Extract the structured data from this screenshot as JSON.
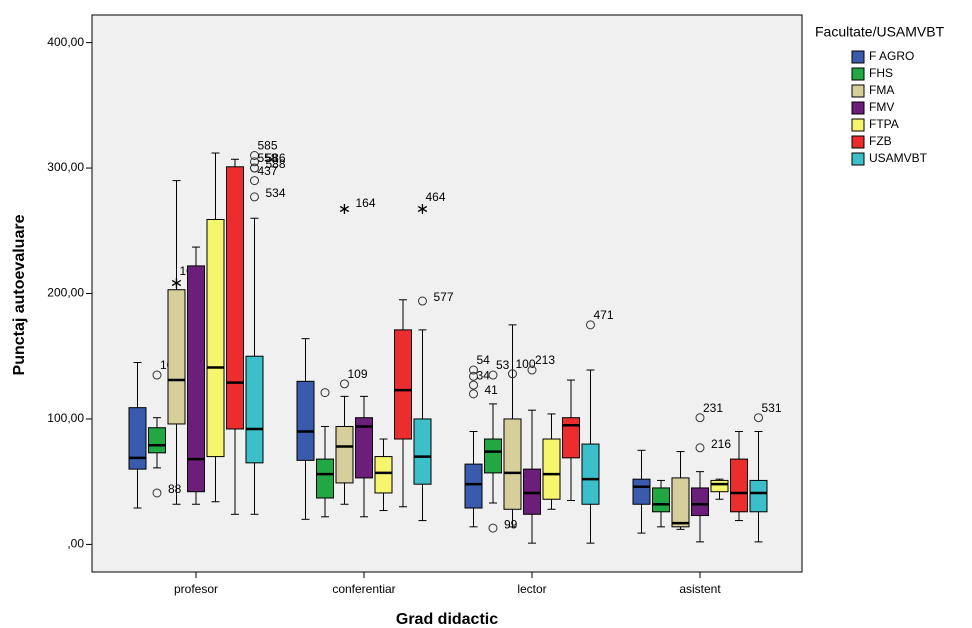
{
  "chart_data": {
    "type": "box",
    "x_label": "Grad didactic",
    "y_label": "Punctaj autoevaluare",
    "legend_title": "Facultate/USAMVBT",
    "categories": [
      "profesor",
      "conferentiar",
      "lector",
      "asistent"
    ],
    "ylim": [
      -22,
      422
    ],
    "yticks": [
      {
        "value": 0,
        "label": ",00"
      },
      {
        "value": 100,
        "label": "100,00"
      },
      {
        "value": 200,
        "label": "200,00"
      },
      {
        "value": 300,
        "label": "300,00"
      },
      {
        "value": 400,
        "label": "400,00"
      }
    ],
    "series": [
      {
        "name": "F AGRO",
        "color": "#3a5bad",
        "boxes": [
          {
            "whislo": 29,
            "q1": 60,
            "med": 69,
            "q3": 109,
            "whishi": 145,
            "outliers": []
          },
          {
            "whislo": 20,
            "q1": 67,
            "med": 90,
            "q3": 130,
            "whishi": 164,
            "outliers": []
          },
          {
            "whislo": 14,
            "q1": 29,
            "med": 48,
            "q3": 64,
            "whishi": 90,
            "outliers": [
              {
                "value": 139,
                "label": "54"
              },
              {
                "value": 134
              },
              {
                "value": 127,
                "label": "34"
              },
              {
                "value": 120,
                "label": "41"
              }
            ]
          },
          {
            "whislo": 9,
            "q1": 32,
            "med": 46,
            "q3": 52,
            "whishi": 75,
            "outliers": []
          }
        ]
      },
      {
        "name": "FHS",
        "color": "#22a843",
        "boxes": [
          {
            "whislo": 61,
            "q1": 73,
            "med": 79,
            "q3": 93,
            "whishi": 101,
            "outliers": [
              {
                "value": 135,
                "label": "105"
              },
              {
                "value": 41,
                "label": "88"
              }
            ]
          },
          {
            "whislo": 22,
            "q1": 37,
            "med": 56,
            "q3": 68,
            "whishi": 94,
            "outliers": [
              {
                "value": 121
              }
            ]
          },
          {
            "whislo": 33,
            "q1": 57,
            "med": 74,
            "q3": 84,
            "whishi": 112,
            "outliers": [
              {
                "value": 135,
                "label": "53"
              },
              {
                "value": 13,
                "label": "99"
              }
            ]
          },
          {
            "whislo": 14,
            "q1": 26,
            "med": 32,
            "q3": 45,
            "whishi": 51,
            "outliers": []
          }
        ]
      },
      {
        "name": "FMA",
        "color": "#d6cf9c",
        "boxes": [
          {
            "whislo": 32,
            "q1": 96,
            "med": 131,
            "q3": 203,
            "whishi": 290,
            "outliers": [
              {
                "value": 210,
                "label": "104",
                "marker": "star"
              }
            ]
          },
          {
            "whislo": 32,
            "q1": 49,
            "med": 78,
            "q3": 94,
            "whishi": 118,
            "outliers": [
              {
                "value": 128,
                "label": "109"
              },
              {
                "value": 269,
                "label": "164",
                "marker": "star"
              }
            ]
          },
          {
            "whislo": 14,
            "q1": 28,
            "med": 57,
            "q3": 100,
            "whishi": 175,
            "outliers": [
              {
                "value": 136,
                "label": "100"
              }
            ]
          },
          {
            "whislo": 12,
            "q1": 14,
            "med": 17,
            "q3": 53,
            "whishi": 74,
            "outliers": []
          }
        ]
      },
      {
        "name": "FMV",
        "color": "#6b1f7a",
        "boxes": [
          {
            "whislo": 32,
            "q1": 42,
            "med": 68,
            "q3": 222,
            "whishi": 237,
            "outliers": []
          },
          {
            "whislo": 22,
            "q1": 53,
            "med": 94,
            "q3": 101,
            "whishi": 118,
            "outliers": []
          },
          {
            "whislo": 1,
            "q1": 24,
            "med": 41,
            "q3": 60,
            "whishi": 107,
            "outliers": [
              {
                "value": 139,
                "label": "213"
              }
            ]
          },
          {
            "whislo": 2,
            "q1": 23,
            "med": 32,
            "q3": 45,
            "whishi": 58,
            "outliers": [
              {
                "value": 101,
                "label": "231"
              },
              {
                "value": 77,
                "label": "216"
              }
            ]
          }
        ]
      },
      {
        "name": "FTPA",
        "color": "#f6f56e",
        "boxes": [
          {
            "whislo": 34,
            "q1": 70,
            "med": 141,
            "q3": 259,
            "whishi": 312,
            "outliers": []
          },
          {
            "whislo": 27,
            "q1": 41,
            "med": 57,
            "q3": 70,
            "whishi": 84,
            "outliers": []
          },
          {
            "whislo": 28,
            "q1": 36,
            "med": 56,
            "q3": 84,
            "whishi": 104,
            "outliers": []
          },
          {
            "whislo": 36,
            "q1": 42,
            "med": 48,
            "q3": 51,
            "whishi": 52,
            "outliers": []
          }
        ]
      },
      {
        "name": "FZB",
        "color": "#ec2d2d",
        "boxes": [
          {
            "whislo": 24,
            "q1": 92,
            "med": 129,
            "q3": 301,
            "whishi": 307,
            "outliers": []
          },
          {
            "whislo": 30,
            "q1": 84,
            "med": 123,
            "q3": 171,
            "whishi": 195,
            "outliers": []
          },
          {
            "whislo": 35,
            "q1": 69,
            "med": 95,
            "q3": 101,
            "whishi": 131,
            "outliers": []
          },
          {
            "whislo": 19,
            "q1": 26,
            "med": 41,
            "q3": 68,
            "whishi": 90,
            "outliers": []
          }
        ]
      },
      {
        "name": "USAMVBT",
        "color": "#3cbfc8",
        "boxes": [
          {
            "whislo": 24,
            "q1": 65,
            "med": 92,
            "q3": 150,
            "whishi": 260,
            "outliers": [
              {
                "value": 310,
                "label": "585"
              },
              {
                "value": 305,
                "label": "586"
              },
              {
                "value": 300,
                "label": "558"
              },
              {
                "value": 300,
                "label": "588"
              },
              {
                "value": 290,
                "label": "437"
              },
              {
                "value": 277,
                "label": "534"
              }
            ]
          },
          {
            "whislo": 19,
            "q1": 48,
            "med": 70,
            "q3": 100,
            "whishi": 171,
            "outliers": [
              {
                "value": 269,
                "label": "464",
                "marker": "star"
              },
              {
                "value": 194,
                "label": "577"
              }
            ]
          },
          {
            "whislo": 1,
            "q1": 32,
            "med": 52,
            "q3": 80,
            "whishi": 139,
            "outliers": [
              {
                "value": 175,
                "label": "471"
              }
            ]
          },
          {
            "whislo": 2,
            "q1": 26,
            "med": 41,
            "q3": 51,
            "whishi": 90,
            "outliers": [
              {
                "value": 101,
                "label": "531"
              }
            ]
          }
        ]
      }
    ]
  }
}
